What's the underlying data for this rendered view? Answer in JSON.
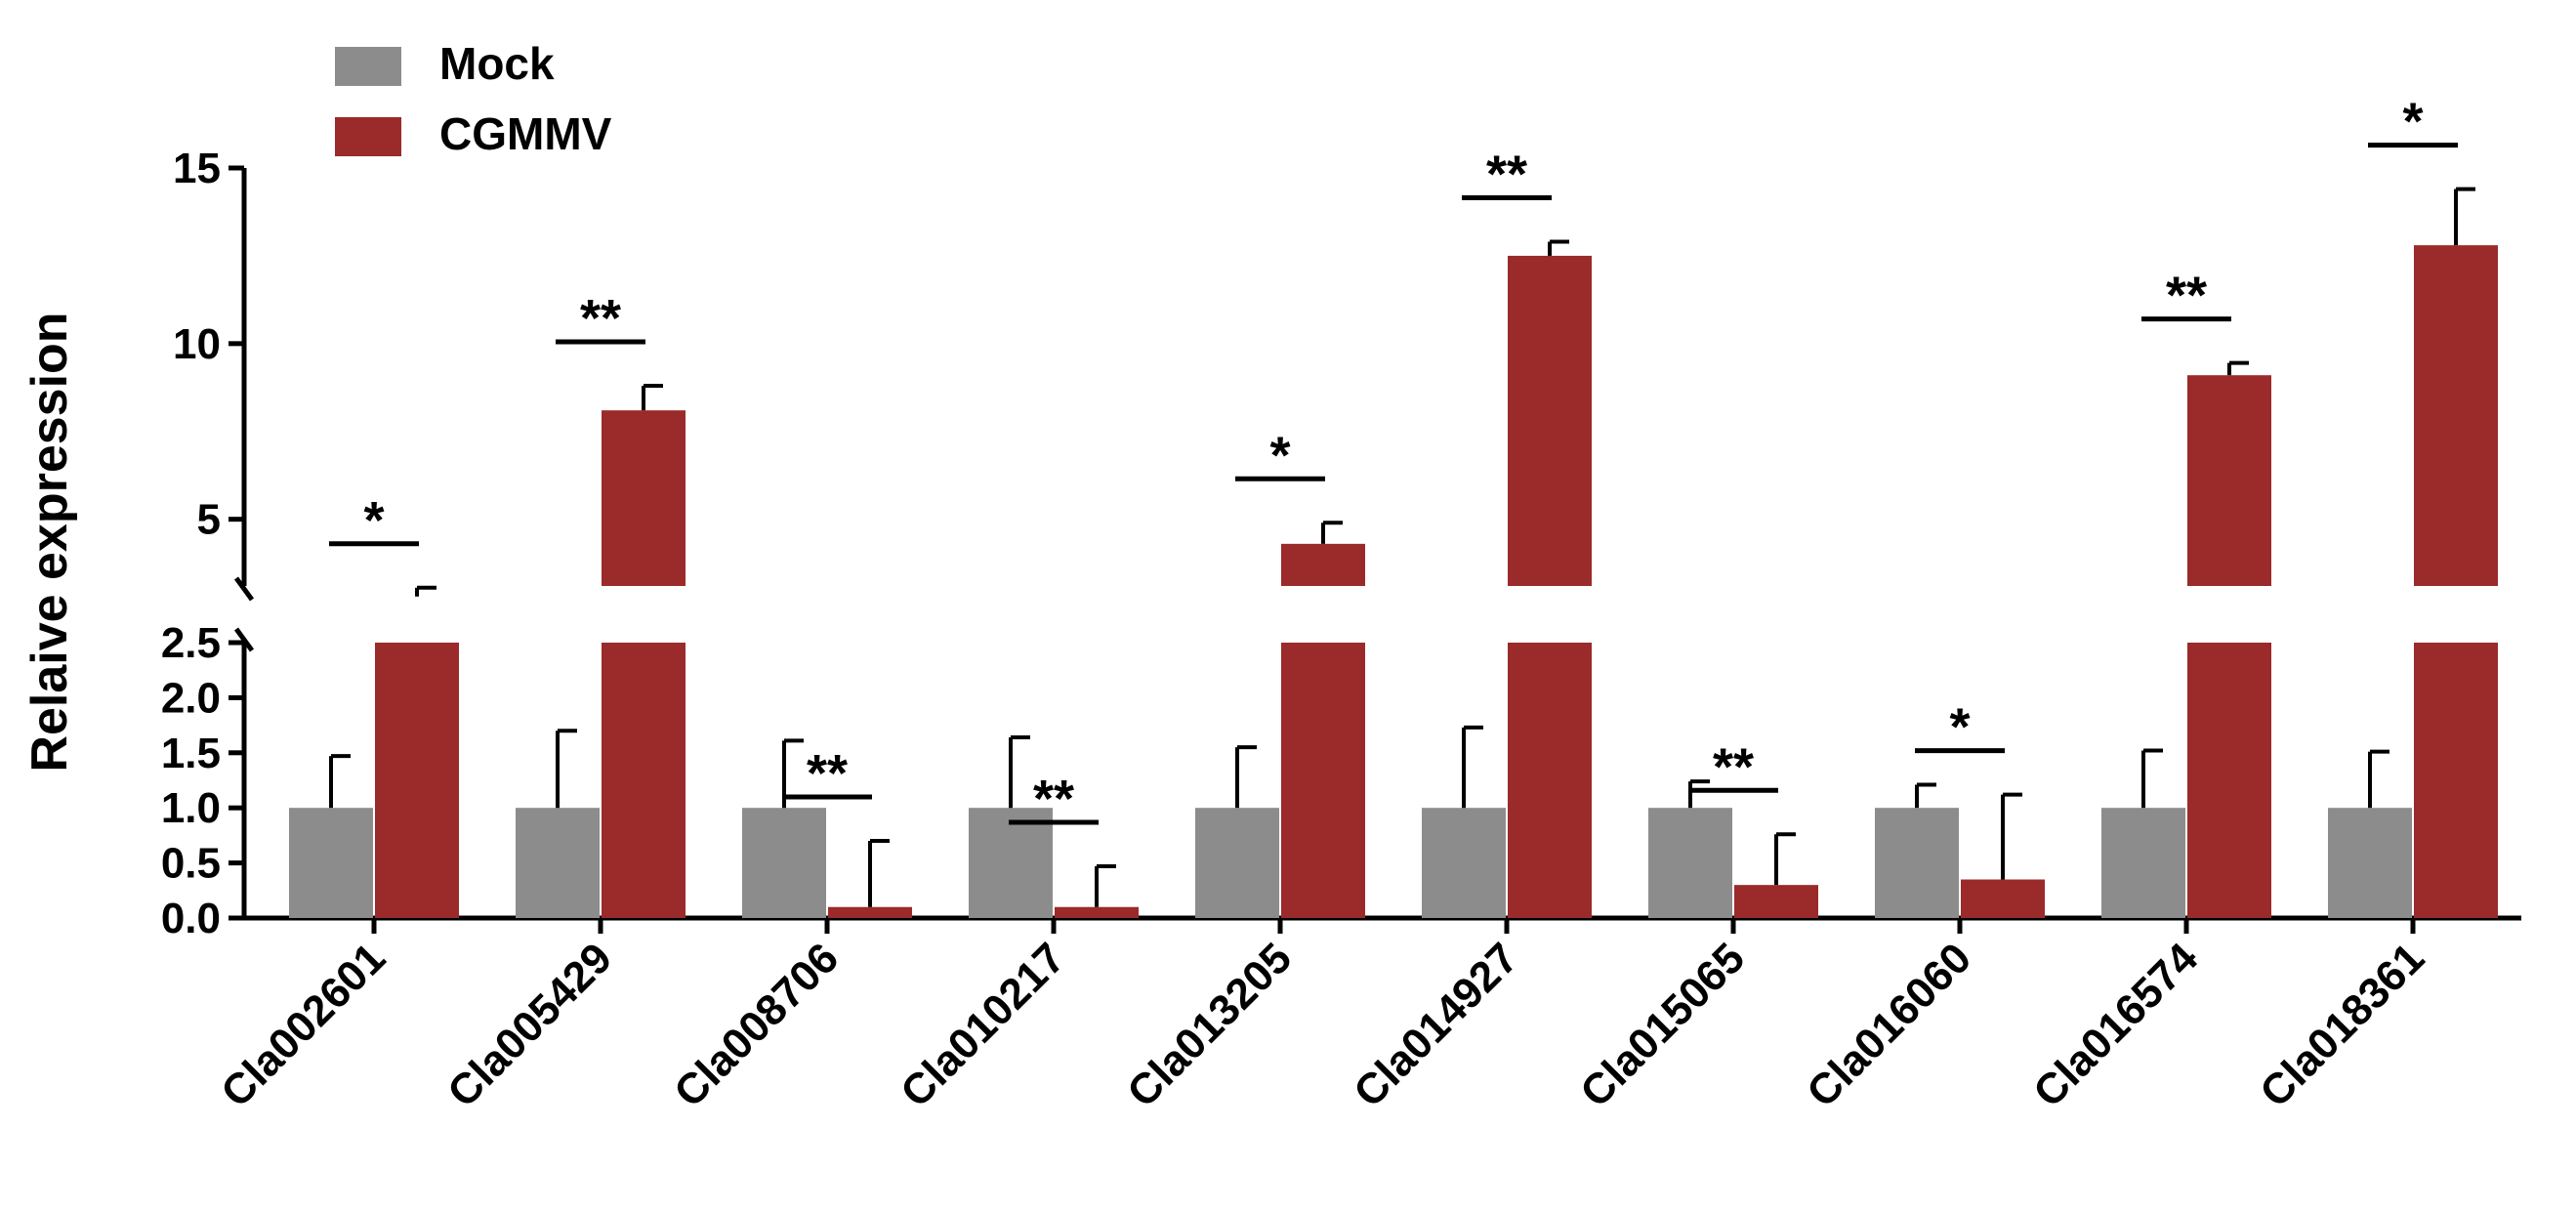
{
  "chart_data": {
    "type": "bar",
    "title": "",
    "xlabel": "",
    "ylabel": "Relaive expression",
    "categories": [
      "Cla002601",
      "Cla005429",
      "Cla008706",
      "Cla010217",
      "Cla013205",
      "Cla014927",
      "Cla015065",
      "Cla016060",
      "Cla016574",
      "Cla018361"
    ],
    "series": [
      {
        "name": "Mock",
        "color": "#8c8c8c",
        "values": [
          1.0,
          1.0,
          1.0,
          1.0,
          1.0,
          1.0,
          1.0,
          1.0,
          1.0,
          1.0
        ],
        "errors": [
          0.47,
          0.7,
          0.61,
          0.64,
          0.55,
          0.73,
          0.24,
          0.21,
          0.52,
          0.51
        ]
      },
      {
        "name": "CGMMV",
        "color": "#9b2a2a",
        "values": [
          2.8,
          8.1,
          0.1,
          0.1,
          4.3,
          12.5,
          0.3,
          0.35,
          9.1,
          12.8
        ],
        "errors": [
          0.25,
          0.7,
          0.6,
          0.37,
          0.6,
          0.4,
          0.46,
          0.77,
          0.35,
          1.6
        ]
      }
    ],
    "significance": [
      "*",
      "**",
      "**",
      "**",
      "*",
      "**",
      "**",
      "*",
      "**",
      "*"
    ],
    "axis_lower": {
      "ylim": [
        0,
        2.5
      ],
      "ticks": [
        "0.0",
        "0.5",
        "1.0",
        "1.5",
        "2.0",
        "2.5"
      ]
    },
    "axis_upper": {
      "ylim": [
        3.1,
        15
      ],
      "ticks": [
        "5",
        "10",
        "15"
      ]
    },
    "legend_position": "top-left"
  }
}
